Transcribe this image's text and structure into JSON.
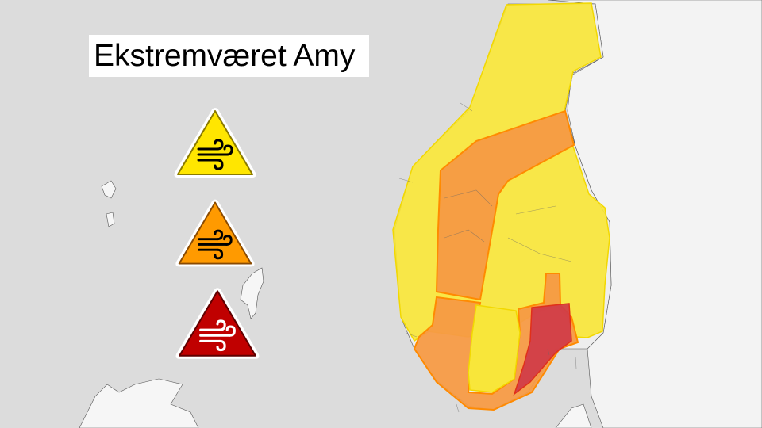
{
  "title": "Ekstremværet Amy",
  "legend": [
    {
      "level": "yellow",
      "icon": "wind-warning-yellow-icon",
      "fill": "#ffe600",
      "stroke": "#8a7a00",
      "glyph": "#000000"
    },
    {
      "level": "orange",
      "icon": "wind-warning-orange-icon",
      "fill": "#ff9a00",
      "stroke": "#8a4a00",
      "glyph": "#000000"
    },
    {
      "level": "red",
      "icon": "wind-warning-red-icon",
      "fill": "#c00000",
      "stroke": "#600000",
      "glyph": "#ffffff"
    }
  ],
  "colors": {
    "sea": "#dcdcdc",
    "land": "#f4f4f4",
    "yellow_zone": "#f8e63a",
    "orange_zone": "#f59a45",
    "red_zone": "#cf3a48"
  }
}
